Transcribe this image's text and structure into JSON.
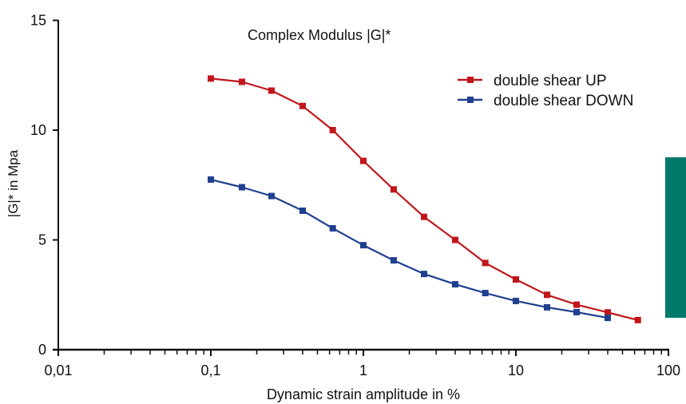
{
  "chart_data": {
    "type": "line",
    "title": "Complex Modulus  |G|*",
    "xlabel": "Dynamic strain amplitude in %",
    "ylabel": "|G|* in Mpa",
    "xscale": "log",
    "xlim": [
      0.01,
      100
    ],
    "ylim": [
      0,
      15
    ],
    "xticks": [
      0.01,
      0.1,
      1,
      10,
      100
    ],
    "xtick_labels": [
      "0,01",
      "0,1",
      "1",
      "10",
      "100"
    ],
    "yticks": [
      0,
      5,
      10,
      15
    ],
    "ytick_labels": [
      "0",
      "5",
      "10",
      "15"
    ],
    "grid": false,
    "legend_position": "top-right",
    "series": [
      {
        "name": "double shear UP",
        "color": "#c0161c",
        "x": [
          0.1,
          0.16,
          0.25,
          0.4,
          0.63,
          1,
          1.58,
          2.5,
          4,
          6.3,
          10,
          16,
          25,
          40,
          63
        ],
        "y": [
          12.35,
          12.2,
          11.8,
          11.1,
          10.0,
          8.6,
          7.3,
          6.05,
          5.0,
          3.95,
          3.2,
          2.5,
          2.05,
          1.7,
          1.35
        ]
      },
      {
        "name": "double shear DOWN",
        "color": "#1f3f8f",
        "x": [
          0.1,
          0.16,
          0.25,
          0.4,
          0.63,
          1,
          1.58,
          2.5,
          4,
          6.3,
          10,
          16,
          25,
          40
        ],
        "y": [
          7.75,
          7.4,
          7.0,
          6.33,
          5.53,
          4.76,
          4.07,
          3.45,
          2.98,
          2.58,
          2.22,
          1.93,
          1.71,
          1.45
        ]
      }
    ]
  },
  "colors": {
    "accent_bar": "#00786a"
  }
}
